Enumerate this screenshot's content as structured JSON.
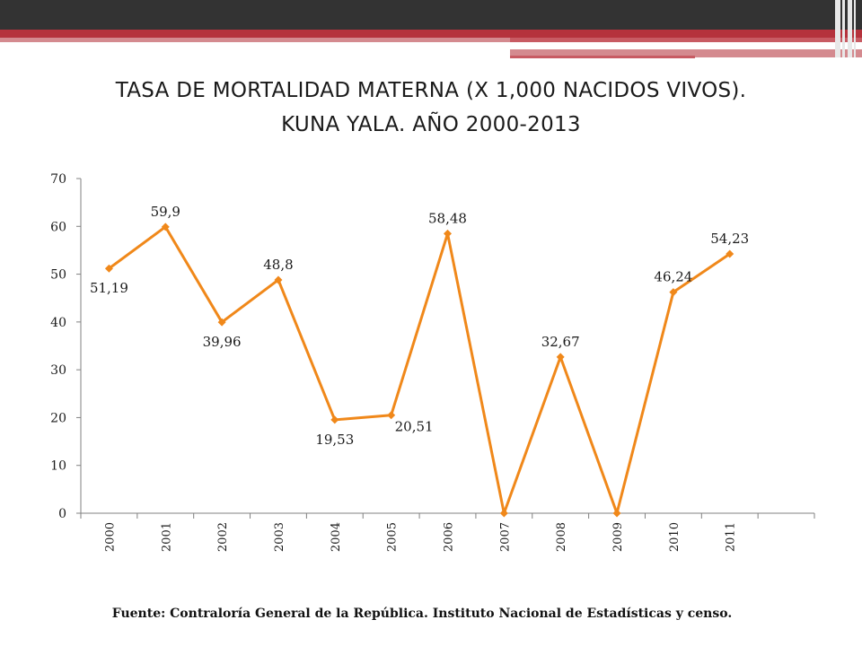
{
  "slide": {
    "title_line1": "TASA DE MORTALIDAD MATERNA (X 1,000 NACIDOS VIVOS).",
    "title_line2": "KUNA YALA. AÑO 2000-2013",
    "source": "Fuente: Contraloría General de la República. Instituto Nacional de Estadísticas y censo."
  },
  "colors": {
    "banner_dark": "#333333",
    "banner_red": "#b5323c",
    "banner_pink": "#d48a8f",
    "series": "#f0881a",
    "axis": "#808080",
    "text": "#1a1a1a"
  },
  "chart_data": {
    "type": "line",
    "title": "",
    "xlabel": "",
    "ylabel": "",
    "categories": [
      "2000",
      "2001",
      "2002",
      "2003",
      "2004",
      "2005",
      "2006",
      "2007",
      "2008",
      "2009",
      "2010",
      "2011"
    ],
    "extra_empty_category": true,
    "series": [
      {
        "values": [
          51.19,
          59.9,
          39.96,
          48.8,
          19.53,
          20.51,
          58.48,
          0,
          32.67,
          0,
          46.24,
          54.23
        ],
        "labels": [
          "51,19",
          "59,9",
          "39,96",
          "48,8",
          "19,53",
          "20,51",
          "58,48",
          "",
          "32,67",
          "",
          "46,24",
          "54,23"
        ],
        "label_pos": [
          "below",
          "above",
          "below",
          "above",
          "below",
          "right",
          "above",
          "",
          "above",
          "",
          "above",
          "above"
        ]
      }
    ],
    "ylim": [
      0,
      70
    ],
    "yticks": [
      "0",
      "10",
      "20",
      "30",
      "40",
      "50",
      "60",
      "70"
    ],
    "marker": "diamond",
    "grid": false,
    "legend": "none"
  }
}
